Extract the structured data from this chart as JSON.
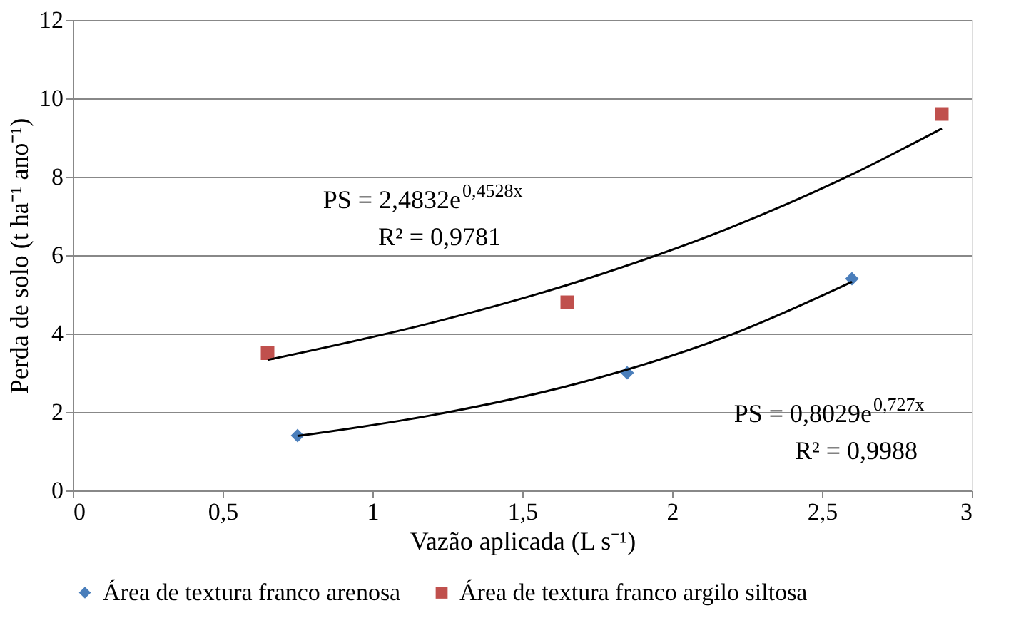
{
  "chart_data": {
    "type": "scatter",
    "xlabel": "Vazão aplicada (L s⁻¹)",
    "ylabel": "Perda de solo (t ha⁻¹ ano⁻¹)",
    "xlim": [
      0,
      3
    ],
    "xticks": [
      0,
      {
        "value": 0.5,
        "label": "0,5"
      },
      1,
      {
        "value": 1.5,
        "label": "1,5"
      },
      2,
      {
        "value": 2.5,
        "label": "2,5"
      },
      3
    ],
    "ylim": [
      0,
      12
    ],
    "yticks": [
      0,
      2,
      4,
      6,
      8,
      10,
      12
    ],
    "grid": "y",
    "legend": "bottom",
    "series": [
      {
        "name": "Área de textura franco arenosa",
        "color": "#4a7ebb",
        "marker": "diamond",
        "x": [
          0.75,
          1.85,
          2.6
        ],
        "values": [
          1.4,
          3.0,
          5.4
        ]
      },
      {
        "name": "Área de textura franco argilo siltosa",
        "color": "#c0504d",
        "marker": "square",
        "x": [
          0.65,
          1.65,
          2.9
        ],
        "values": [
          3.5,
          4.8,
          9.6
        ]
      },
      {
        "type": "line",
        "color": "#000000",
        "marker": "none",
        "x": [
          0.75,
          1.2,
          1.7,
          2.2,
          2.6
        ],
        "values": [
          1.39,
          1.92,
          2.76,
          3.98,
          5.32
        ]
      },
      {
        "type": "line",
        "color": "#000000",
        "marker": "none",
        "x": [
          0.65,
          1.2,
          1.7,
          2.2,
          2.6,
          2.9
        ],
        "values": [
          3.33,
          4.28,
          5.36,
          6.72,
          8.06,
          9.23
        ]
      }
    ],
    "annotations": [
      "PS = 2,4832e$^{0,4528x}$",
      "R² = 0,9781",
      "PS = 0,8029e$^{0,727x}$",
      "R² = 0,9988"
    ]
  }
}
